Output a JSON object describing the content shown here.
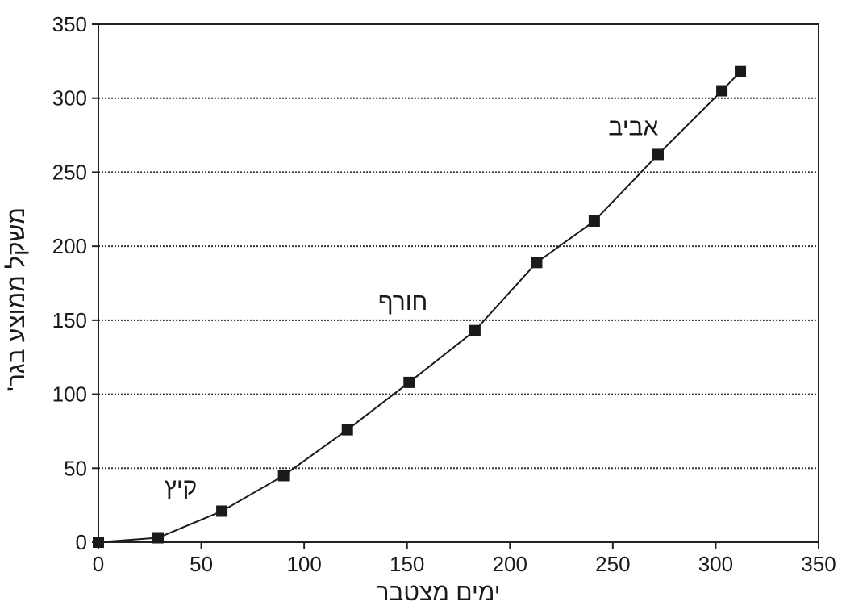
{
  "chart_data": {
    "type": "line",
    "xlabel": "ימים מצטבר",
    "ylabel": "משקל ממוצע בגר'",
    "xlim": [
      0,
      350
    ],
    "ylim": [
      0,
      350
    ],
    "xticks": [
      0,
      50,
      100,
      150,
      200,
      250,
      300,
      350
    ],
    "yticks": [
      0,
      50,
      100,
      150,
      200,
      250,
      300,
      350
    ],
    "grid": "horizontal dotted",
    "series": [
      {
        "x": [
          0,
          29,
          60,
          90,
          121,
          151,
          183,
          213,
          241,
          272,
          303,
          312
        ],
        "y": [
          0,
          3,
          21,
          45,
          76,
          108,
          143,
          189,
          217,
          262,
          305,
          318
        ],
        "marker": "square",
        "color": "#1a1a1a"
      }
    ],
    "annotations": [
      {
        "text": "קיץ",
        "x": 40,
        "y": 32
      },
      {
        "text": "חורף",
        "x": 148,
        "y": 157
      },
      {
        "text": "אביב",
        "x": 260,
        "y": 275
      }
    ]
  }
}
